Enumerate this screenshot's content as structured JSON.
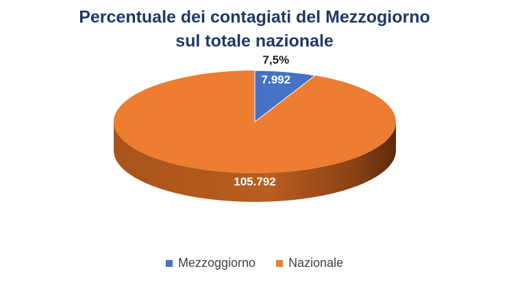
{
  "chart_data": {
    "type": "pie",
    "title_line1": "Percentuale dei contagiati del Mezzogiorno",
    "title_line2": "sul totale nazionale",
    "slices": [
      {
        "name": "Mezzoggiorno",
        "value": 7992,
        "label": "7.992",
        "color": "#4472c4"
      },
      {
        "name": "Nazionale",
        "value": 105792,
        "label": "105.792",
        "color": "#ed7d31"
      }
    ],
    "percent_label": "7,5%",
    "legend_position": "bottom",
    "style": "3d"
  }
}
